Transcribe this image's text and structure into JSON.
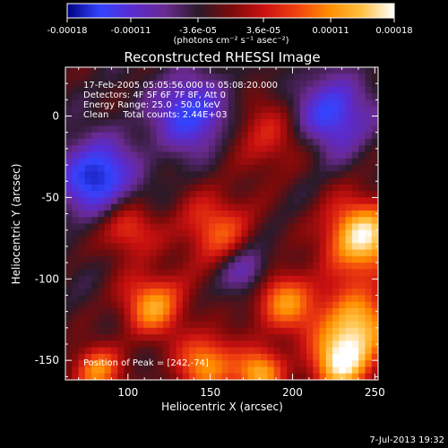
{
  "chart_data": {
    "type": "heatmap",
    "title": "Reconstructed RHESSI Image",
    "xlabel": "Heliocentric X (arcsec)",
    "ylabel": "Heliocentric Y (arcsec)",
    "xlim": [
      62,
      252
    ],
    "ylim": [
      -162,
      30
    ],
    "xticks": [
      "100",
      "150",
      "200",
      "250"
    ],
    "yticks": [
      "0",
      "-50",
      "-100",
      "-150"
    ],
    "colorbar": {
      "range": [
        -0.00018,
        0.00018
      ],
      "ticks": [
        "-0.00018",
        "-0.00011",
        "-3.6e-05",
        "3.6e-05",
        "0.00011",
        "0.00018"
      ],
      "unit_label": "(photons cm⁻² s⁻¹ asec⁻²)",
      "colormap": [
        "#000080",
        "#3344ff",
        "#5a2bd0",
        "#6a2a90",
        "#2a1a2a",
        "#7a0a0a",
        "#c81010",
        "#f04010",
        "#ff8c00",
        "#ffc040",
        "#ffffff"
      ]
    },
    "annotations": [
      "17-Feb-2005 05:05:56.000 to 05:08:20.000",
      "Detectors: 4F 5F 6F 7F 8F, Att 0",
      "Energy Range: 25.0 - 50.0 keV",
      "Clean     Total counts: 2.44E+03",
      "Position of Peak = [242,-74]"
    ],
    "peak": {
      "x": 242,
      "y": -74
    }
  },
  "footer": {
    "timestamp": "7-Jul-2013 19:32"
  }
}
